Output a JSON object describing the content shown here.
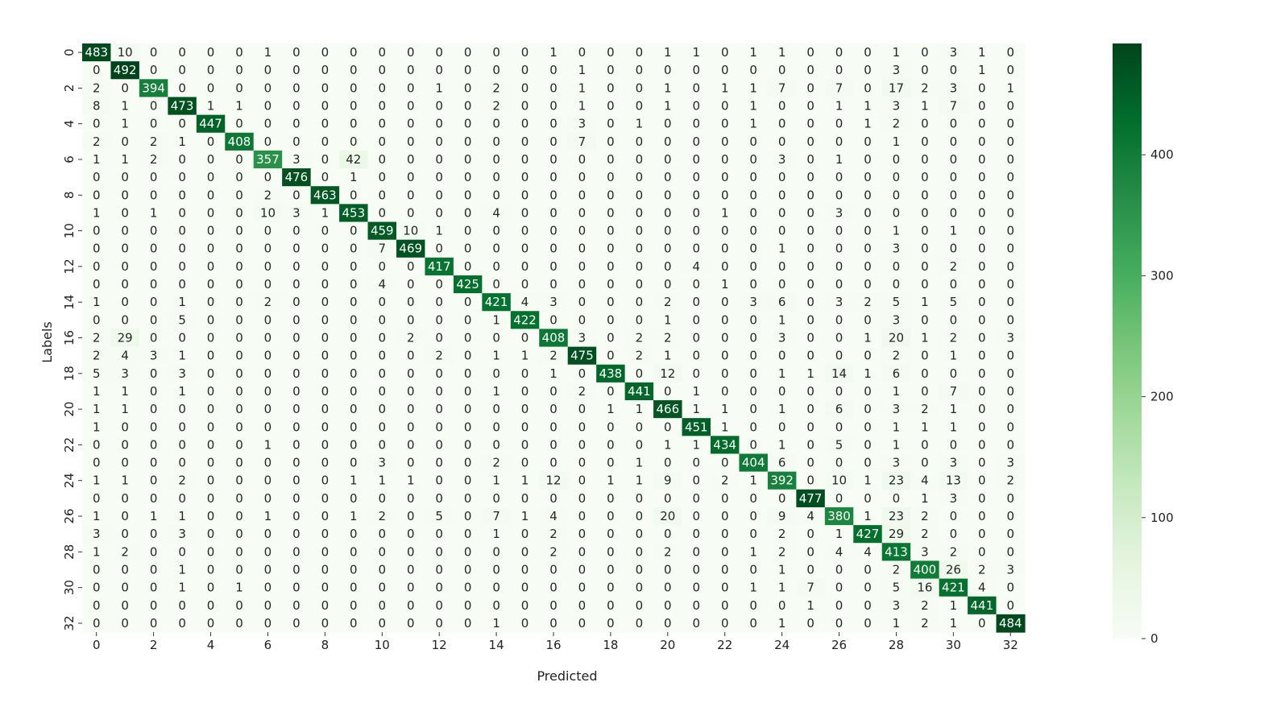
{
  "chart_data": {
    "type": "heatmap",
    "title": "",
    "xlabel": "Predicted",
    "ylabel": "Labels",
    "x_ticks": [
      "0",
      "2",
      "4",
      "6",
      "8",
      "10",
      "12",
      "14",
      "16",
      "18",
      "20",
      "22",
      "24",
      "26",
      "28",
      "30",
      "32"
    ],
    "y_ticks": [
      "0",
      "2",
      "4",
      "6",
      "8",
      "10",
      "12",
      "14",
      "16",
      "18",
      "20",
      "22",
      "24",
      "26",
      "28",
      "30",
      "32"
    ],
    "colorbar": {
      "min": 0,
      "max": 492,
      "ticks": [
        "0",
        "100",
        "200",
        "300",
        "400"
      ],
      "colormap": "Greens"
    },
    "values": [
      [
        483,
        10,
        0,
        0,
        0,
        0,
        1,
        0,
        0,
        0,
        0,
        0,
        0,
        0,
        0,
        0,
        1,
        0,
        0,
        0,
        1,
        1,
        0,
        1,
        1,
        0,
        0,
        0,
        1,
        0,
        3,
        1,
        0
      ],
      [
        0,
        492,
        0,
        0,
        0,
        0,
        0,
        0,
        0,
        0,
        0,
        0,
        0,
        0,
        0,
        0,
        0,
        1,
        0,
        0,
        0,
        0,
        0,
        0,
        0,
        0,
        0,
        0,
        3,
        0,
        0,
        1,
        0
      ],
      [
        2,
        0,
        394,
        0,
        0,
        0,
        0,
        0,
        0,
        0,
        0,
        0,
        1,
        0,
        2,
        0,
        0,
        1,
        0,
        0,
        1,
        0,
        1,
        1,
        7,
        0,
        7,
        0,
        17,
        2,
        3,
        0,
        1
      ],
      [
        8,
        1,
        0,
        473,
        1,
        1,
        0,
        0,
        0,
        0,
        0,
        0,
        0,
        0,
        2,
        0,
        0,
        1,
        0,
        0,
        1,
        0,
        0,
        1,
        0,
        0,
        1,
        1,
        3,
        1,
        7,
        0,
        0
      ],
      [
        0,
        1,
        0,
        0,
        447,
        0,
        0,
        0,
        0,
        0,
        0,
        0,
        0,
        0,
        0,
        0,
        0,
        3,
        0,
        1,
        0,
        0,
        0,
        1,
        0,
        0,
        0,
        1,
        2,
        0,
        0,
        0,
        0
      ],
      [
        2,
        0,
        2,
        1,
        0,
        408,
        0,
        0,
        0,
        0,
        0,
        0,
        0,
        0,
        0,
        0,
        0,
        7,
        0,
        0,
        0,
        0,
        0,
        0,
        0,
        0,
        0,
        0,
        1,
        0,
        0,
        0,
        0
      ],
      [
        1,
        1,
        2,
        0,
        0,
        0,
        357,
        3,
        0,
        42,
        0,
        0,
        0,
        0,
        0,
        0,
        0,
        0,
        0,
        0,
        0,
        0,
        0,
        0,
        3,
        0,
        1,
        0,
        0,
        0,
        0,
        0,
        0
      ],
      [
        0,
        0,
        0,
        0,
        0,
        0,
        0,
        476,
        0,
        1,
        0,
        0,
        0,
        0,
        0,
        0,
        0,
        0,
        0,
        0,
        0,
        0,
        0,
        0,
        0,
        0,
        0,
        0,
        0,
        0,
        0,
        0,
        0
      ],
      [
        0,
        0,
        0,
        0,
        0,
        0,
        2,
        0,
        463,
        0,
        0,
        0,
        0,
        0,
        0,
        0,
        0,
        0,
        0,
        0,
        0,
        0,
        0,
        0,
        0,
        0,
        0,
        0,
        0,
        0,
        0,
        0,
        0
      ],
      [
        1,
        0,
        1,
        0,
        0,
        0,
        10,
        3,
        1,
        453,
        0,
        0,
        0,
        0,
        4,
        0,
        0,
        0,
        0,
        0,
        0,
        0,
        1,
        0,
        0,
        0,
        3,
        0,
        0,
        0,
        0,
        0,
        0
      ],
      [
        0,
        0,
        0,
        0,
        0,
        0,
        0,
        0,
        0,
        0,
        459,
        10,
        1,
        0,
        0,
        0,
        0,
        0,
        0,
        0,
        0,
        0,
        0,
        0,
        0,
        0,
        0,
        0,
        1,
        0,
        1,
        0,
        0
      ],
      [
        0,
        0,
        0,
        0,
        0,
        0,
        0,
        0,
        0,
        0,
        7,
        469,
        0,
        0,
        0,
        0,
        0,
        0,
        0,
        0,
        0,
        0,
        0,
        0,
        1,
        0,
        0,
        0,
        3,
        0,
        0,
        0,
        0
      ],
      [
        0,
        0,
        0,
        0,
        0,
        0,
        0,
        0,
        0,
        0,
        0,
        0,
        417,
        0,
        0,
        0,
        0,
        0,
        0,
        0,
        0,
        4,
        0,
        0,
        0,
        0,
        0,
        0,
        0,
        0,
        2,
        0,
        0
      ],
      [
        0,
        0,
        0,
        0,
        0,
        0,
        0,
        0,
        0,
        0,
        4,
        0,
        0,
        425,
        0,
        0,
        0,
        0,
        0,
        0,
        0,
        0,
        1,
        0,
        0,
        0,
        0,
        0,
        0,
        0,
        0,
        0,
        0
      ],
      [
        1,
        0,
        0,
        1,
        0,
        0,
        2,
        0,
        0,
        0,
        0,
        0,
        0,
        0,
        421,
        4,
        3,
        0,
        0,
        0,
        2,
        0,
        0,
        3,
        6,
        0,
        3,
        2,
        5,
        1,
        5,
        0,
        0
      ],
      [
        0,
        0,
        0,
        5,
        0,
        0,
        0,
        0,
        0,
        0,
        0,
        0,
        0,
        0,
        1,
        422,
        0,
        0,
        0,
        0,
        1,
        0,
        0,
        0,
        1,
        0,
        0,
        0,
        3,
        0,
        0,
        0,
        0
      ],
      [
        2,
        29,
        0,
        0,
        0,
        0,
        0,
        0,
        0,
        0,
        0,
        2,
        0,
        0,
        0,
        0,
        408,
        3,
        0,
        2,
        2,
        0,
        0,
        0,
        3,
        0,
        0,
        1,
        20,
        1,
        2,
        0,
        3
      ],
      [
        2,
        4,
        3,
        1,
        0,
        0,
        0,
        0,
        0,
        0,
        0,
        0,
        2,
        0,
        1,
        1,
        2,
        475,
        0,
        2,
        1,
        0,
        0,
        0,
        0,
        0,
        0,
        0,
        2,
        0,
        1,
        0,
        0
      ],
      [
        5,
        3,
        0,
        3,
        0,
        0,
        0,
        0,
        0,
        0,
        0,
        0,
        0,
        0,
        0,
        0,
        1,
        0,
        438,
        0,
        12,
        0,
        0,
        0,
        1,
        1,
        14,
        1,
        6,
        0,
        0,
        0,
        0
      ],
      [
        1,
        1,
        0,
        1,
        0,
        0,
        0,
        0,
        0,
        0,
        0,
        0,
        0,
        0,
        1,
        0,
        0,
        2,
        0,
        441,
        0,
        1,
        0,
        0,
        0,
        0,
        0,
        0,
        1,
        0,
        7,
        0,
        0
      ],
      [
        1,
        1,
        0,
        0,
        0,
        0,
        0,
        0,
        0,
        0,
        0,
        0,
        0,
        0,
        0,
        0,
        0,
        0,
        1,
        1,
        466,
        1,
        1,
        0,
        1,
        0,
        6,
        0,
        3,
        2,
        1,
        0,
        0
      ],
      [
        1,
        0,
        0,
        0,
        0,
        0,
        0,
        0,
        0,
        0,
        0,
        0,
        0,
        0,
        0,
        0,
        0,
        0,
        0,
        0,
        0,
        451,
        1,
        0,
        0,
        0,
        0,
        0,
        1,
        1,
        1,
        0,
        0
      ],
      [
        0,
        0,
        0,
        0,
        0,
        0,
        1,
        0,
        0,
        0,
        0,
        0,
        0,
        0,
        0,
        0,
        0,
        0,
        0,
        0,
        1,
        1,
        434,
        0,
        1,
        0,
        5,
        0,
        1,
        0,
        0,
        0,
        0
      ],
      [
        0,
        0,
        0,
        0,
        0,
        0,
        0,
        0,
        0,
        0,
        3,
        0,
        0,
        0,
        2,
        0,
        0,
        0,
        0,
        1,
        0,
        0,
        0,
        404,
        6,
        0,
        0,
        0,
        3,
        0,
        3,
        0,
        3
      ],
      [
        1,
        1,
        0,
        2,
        0,
        0,
        0,
        0,
        0,
        1,
        1,
        1,
        0,
        0,
        1,
        1,
        12,
        0,
        1,
        1,
        9,
        0,
        2,
        1,
        392,
        0,
        10,
        1,
        23,
        4,
        13,
        0,
        2
      ],
      [
        0,
        0,
        0,
        0,
        0,
        0,
        0,
        0,
        0,
        0,
        0,
        0,
        0,
        0,
        0,
        0,
        0,
        0,
        0,
        0,
        0,
        0,
        0,
        0,
        0,
        477,
        0,
        0,
        0,
        1,
        3,
        0,
        0
      ],
      [
        1,
        0,
        1,
        1,
        0,
        0,
        1,
        0,
        0,
        1,
        2,
        0,
        5,
        0,
        7,
        1,
        4,
        0,
        0,
        0,
        20,
        0,
        0,
        0,
        9,
        4,
        380,
        1,
        23,
        2,
        0,
        0,
        0
      ],
      [
        3,
        0,
        0,
        3,
        0,
        0,
        0,
        0,
        0,
        0,
        0,
        0,
        0,
        0,
        1,
        0,
        2,
        0,
        0,
        0,
        0,
        0,
        0,
        0,
        2,
        0,
        1,
        427,
        29,
        2,
        0,
        0,
        0
      ],
      [
        1,
        2,
        0,
        0,
        0,
        0,
        0,
        0,
        0,
        0,
        0,
        0,
        0,
        0,
        0,
        0,
        2,
        0,
        0,
        0,
        2,
        0,
        0,
        1,
        2,
        0,
        4,
        4,
        413,
        3,
        2,
        0,
        0
      ],
      [
        0,
        0,
        0,
        1,
        0,
        0,
        0,
        0,
        0,
        0,
        0,
        0,
        0,
        0,
        0,
        0,
        0,
        0,
        0,
        0,
        0,
        0,
        0,
        0,
        1,
        0,
        0,
        0,
        2,
        400,
        26,
        2,
        3
      ],
      [
        0,
        0,
        0,
        1,
        0,
        1,
        0,
        0,
        0,
        0,
        0,
        0,
        0,
        0,
        0,
        0,
        0,
        0,
        0,
        0,
        0,
        0,
        0,
        1,
        1,
        7,
        0,
        0,
        5,
        16,
        421,
        4,
        0
      ],
      [
        0,
        0,
        0,
        0,
        0,
        0,
        0,
        0,
        0,
        0,
        0,
        0,
        0,
        0,
        0,
        0,
        0,
        0,
        0,
        0,
        0,
        0,
        0,
        0,
        0,
        1,
        0,
        0,
        3,
        2,
        1,
        441,
        0
      ],
      [
        0,
        0,
        0,
        0,
        0,
        0,
        0,
        0,
        0,
        0,
        0,
        0,
        0,
        0,
        1,
        0,
        0,
        0,
        0,
        0,
        0,
        0,
        0,
        0,
        1,
        0,
        0,
        0,
        1,
        2,
        1,
        0,
        484
      ]
    ]
  }
}
